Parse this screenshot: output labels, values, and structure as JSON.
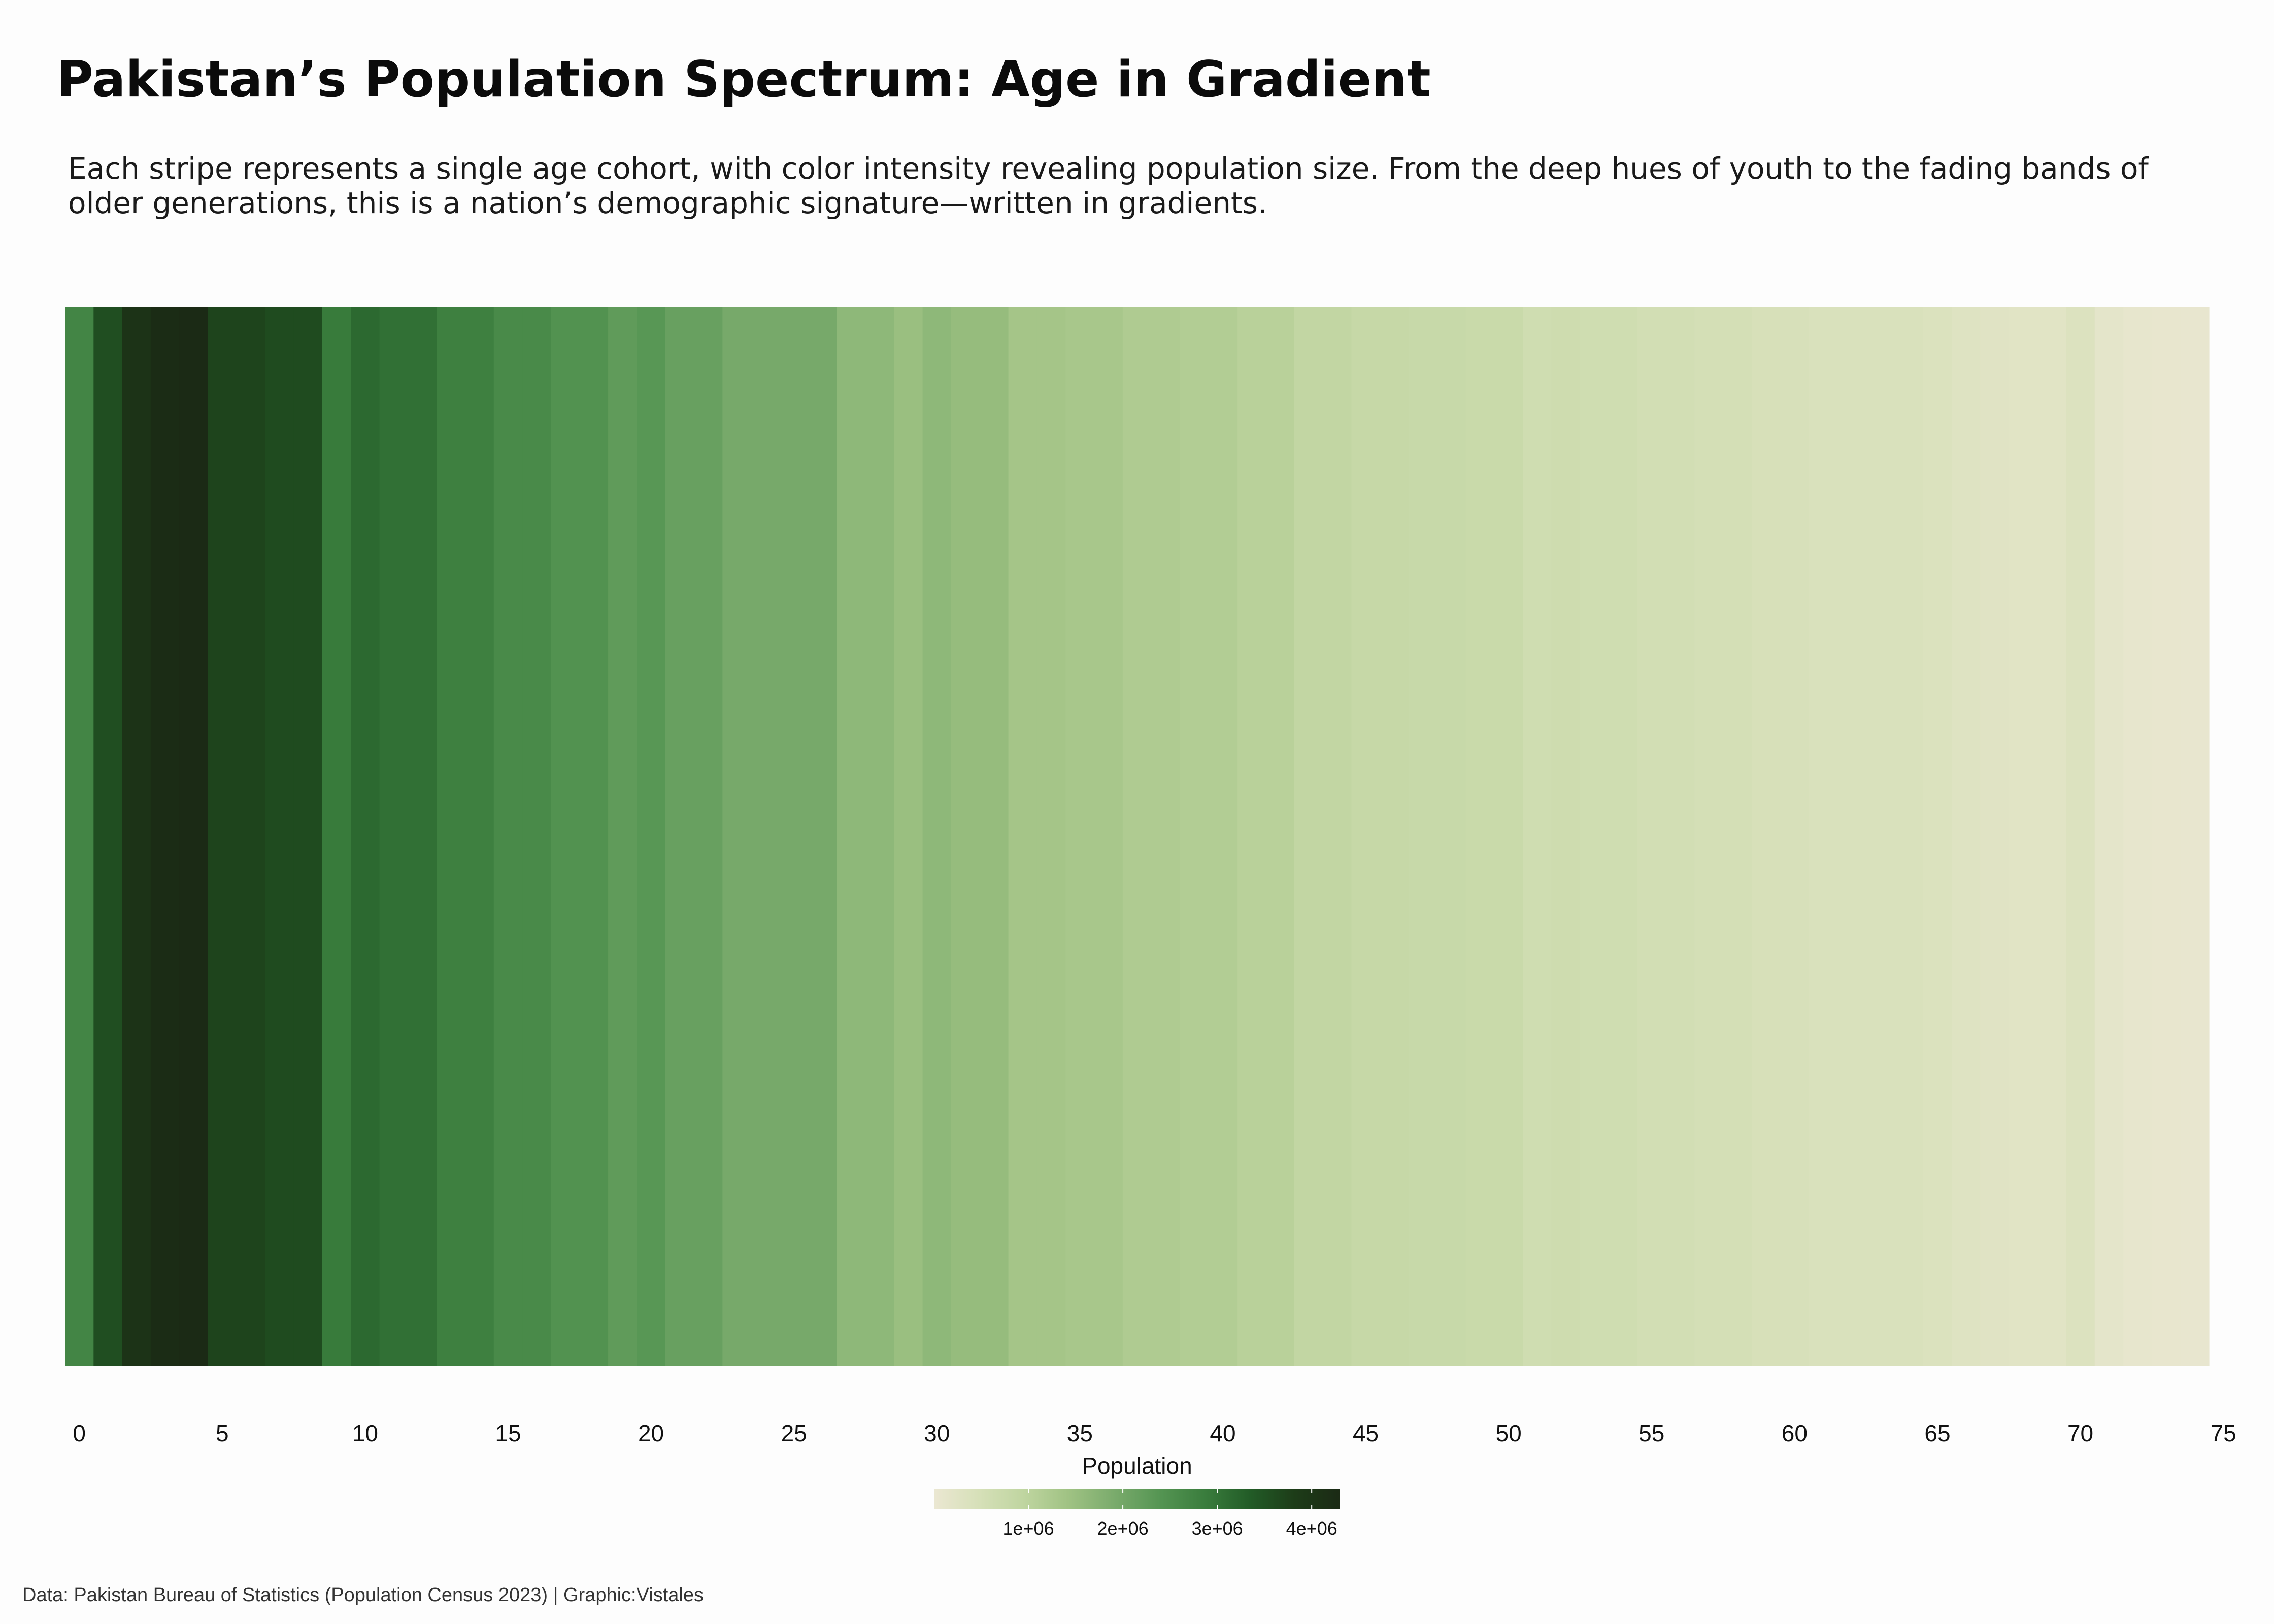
{
  "title": "Pakistan’s Population Spectrum: Age in Gradient",
  "subtitle": "Each stripe represents a single age cohort, with color intensity revealing population size. From the deep hues of youth to the fading bands of older generations, this is a nation’s demographic signature—written in gradients.",
  "caption": "Data: Pakistan Bureau of Statistics (Population Census 2023)   | Graphic:Vistales",
  "chart_data": {
    "type": "heatmap",
    "x": [
      0,
      1,
      2,
      3,
      4,
      5,
      6,
      7,
      8,
      9,
      10,
      11,
      12,
      13,
      14,
      15,
      16,
      17,
      18,
      19,
      20,
      21,
      22,
      23,
      24,
      25,
      26,
      27,
      28,
      29,
      30,
      31,
      32,
      33,
      34,
      35,
      36,
      37,
      38,
      39,
      40,
      41,
      42,
      43,
      44,
      45,
      46,
      47,
      48,
      49,
      50,
      51,
      52,
      53,
      54,
      55,
      56,
      57,
      58,
      59,
      60,
      61,
      62,
      63,
      64,
      65,
      66,
      67,
      68,
      69,
      70,
      71,
      72,
      73,
      74
    ],
    "values": [
      2700000,
      3550000,
      4050000,
      4250000,
      4550000,
      3700000,
      3700000,
      3600000,
      3600000,
      2900000,
      3150000,
      3050000,
      3050000,
      2800000,
      2800000,
      2600000,
      2600000,
      2450000,
      2450000,
      2250000,
      2350000,
      2150000,
      2150000,
      1950000,
      1950000,
      1950000,
      1950000,
      1650000,
      1650000,
      1500000,
      1650000,
      1550000,
      1550000,
      1350000,
      1350000,
      1300000,
      1300000,
      1200000,
      1200000,
      1150000,
      1150000,
      1050000,
      1050000,
      900000,
      900000,
      820000,
      820000,
      780000,
      780000,
      750000,
      750000,
      620000,
      650000,
      620000,
      620000,
      560000,
      560000,
      520000,
      520000,
      460000,
      450000,
      400000,
      400000,
      400000,
      400000,
      370000,
      300000,
      250000,
      230000,
      230000,
      340000,
      150000,
      90000,
      70000,
      60000
    ],
    "x_ticks": [
      0,
      5,
      10,
      15,
      20,
      25,
      30,
      35,
      40,
      45,
      50,
      55,
      60,
      65,
      70,
      75
    ],
    "xlim": [
      -0.5,
      74.5
    ],
    "legend": {
      "title": "Population",
      "ticks": [
        1000000,
        2000000,
        3000000,
        4000000
      ],
      "tick_labels": [
        "1e+06",
        "2e+06",
        "3e+06",
        "4e+06"
      ],
      "range": [
        0,
        4300000
      ],
      "position": "bottom"
    },
    "palette": [
      "#ebe7d2",
      "#d6e0b8",
      "#bfd5a0",
      "#9fc283",
      "#7aab6c",
      "#559553",
      "#3a7d3d",
      "#225c27",
      "#1d3c18",
      "#1b2a15"
    ]
  }
}
